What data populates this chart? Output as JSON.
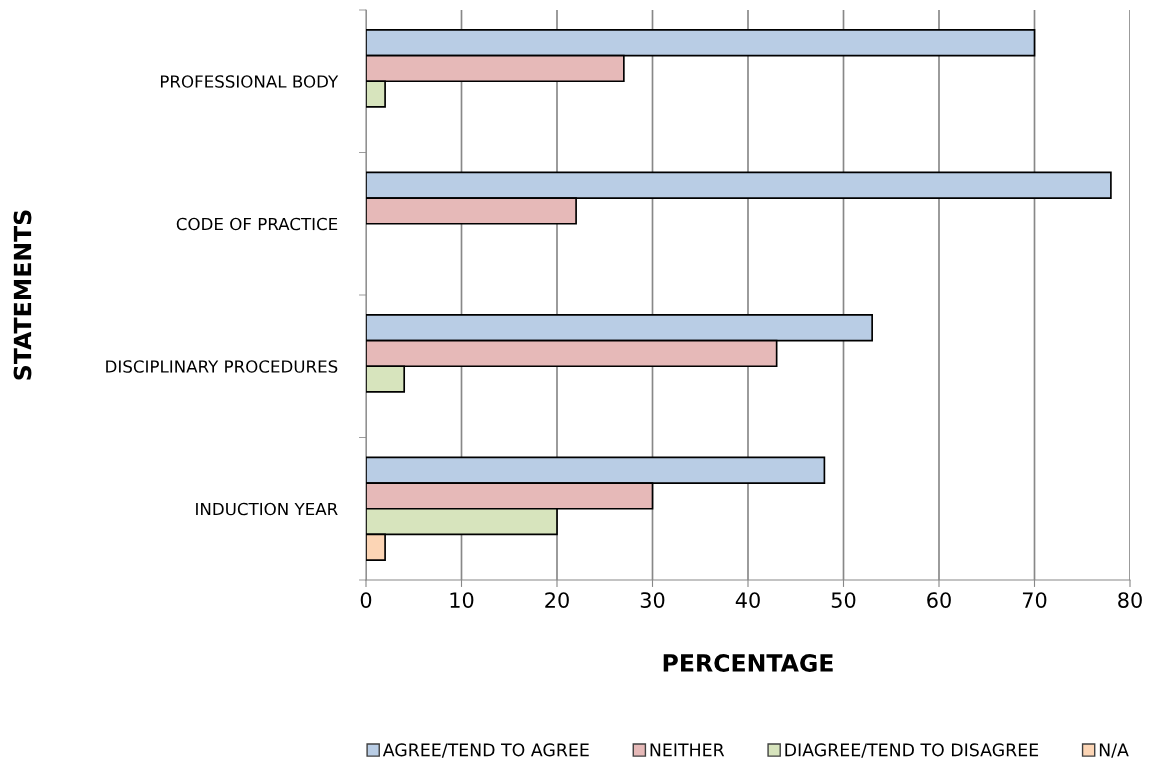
{
  "chart_data": {
    "type": "bar",
    "orientation": "horizontal",
    "xlabel": "PERCENTAGE",
    "ylabel": "STATEMENTS",
    "categories": [
      "PROFESSIONAL BODY",
      "CODE OF PRACTICE",
      "DISCIPLINARY PROCEDURES",
      "INDUCTION YEAR"
    ],
    "series": [
      {
        "name": "AGREE/TEND TO AGREE",
        "color": "#b9cde5",
        "values": [
          70,
          78,
          53,
          48
        ]
      },
      {
        "name": "NEITHER",
        "color": "#e6b9b8",
        "values": [
          27,
          22,
          43,
          30
        ]
      },
      {
        "name": "DIAGREE/TEND TO DISAGREE",
        "color": "#d7e4bd",
        "values": [
          2,
          null,
          4,
          20
        ]
      },
      {
        "name": "N/A",
        "color": "#fcd5b5",
        "values": [
          null,
          null,
          null,
          2
        ]
      }
    ],
    "xlim": [
      0,
      80
    ],
    "xticks": [
      0,
      10,
      20,
      30,
      40,
      50,
      60,
      70,
      80
    ],
    "grid": "x",
    "legend": "bottom"
  }
}
